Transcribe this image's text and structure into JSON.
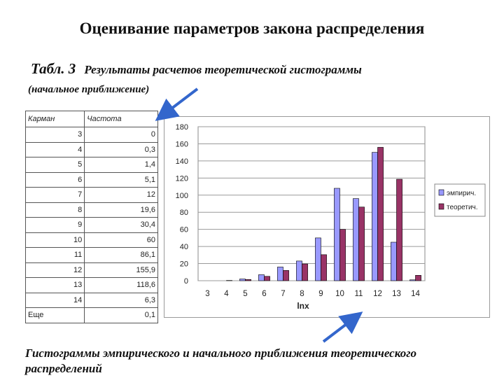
{
  "slide": {
    "title": "Оценивание параметров закона распределения",
    "table_number": "Табл. 3",
    "table_caption": "Результаты расчетов теоретической гистограммы",
    "caption_note": "(начальное приближение)",
    "footer": "Гистограммы эмпирического и начального приближения теоретического распределений"
  },
  "table": {
    "headers": [
      "Карман",
      "Частота"
    ],
    "rows": [
      [
        "3",
        "0"
      ],
      [
        "4",
        "0,3"
      ],
      [
        "5",
        "1,4"
      ],
      [
        "6",
        "5,1"
      ],
      [
        "7",
        "12"
      ],
      [
        "8",
        "19,6"
      ],
      [
        "9",
        "30,4"
      ],
      [
        "10",
        "60"
      ],
      [
        "11",
        "86,1"
      ],
      [
        "12",
        "155,9"
      ],
      [
        "13",
        "118,6"
      ],
      [
        "14",
        "6,3"
      ],
      [
        "Еще",
        "0,1"
      ]
    ]
  },
  "colors": {
    "empirical": "#9999FF",
    "theoretical": "#993366",
    "arrow": "#3366CC"
  },
  "chart_data": {
    "type": "bar",
    "categories": [
      "3",
      "4",
      "5",
      "6",
      "7",
      "8",
      "9",
      "10",
      "11",
      "12",
      "13",
      "14"
    ],
    "series": [
      {
        "name": "эмпирич.",
        "values": [
          0,
          0,
          2,
          7,
          16,
          23,
          50,
          108,
          96,
          150,
          45,
          1
        ]
      },
      {
        "name": "теоретич.",
        "values": [
          0,
          0.3,
          1.4,
          5.1,
          12,
          19.6,
          30.4,
          60,
          86.1,
          155.9,
          118.6,
          6.3
        ]
      }
    ],
    "xlabel": "lnx",
    "ylabel": "",
    "ylim": [
      0,
      180
    ],
    "yticks": [
      "0",
      "20",
      "40",
      "60",
      "80",
      "100",
      "120",
      "140",
      "160",
      "180"
    ],
    "grid": true,
    "legend": "right"
  }
}
